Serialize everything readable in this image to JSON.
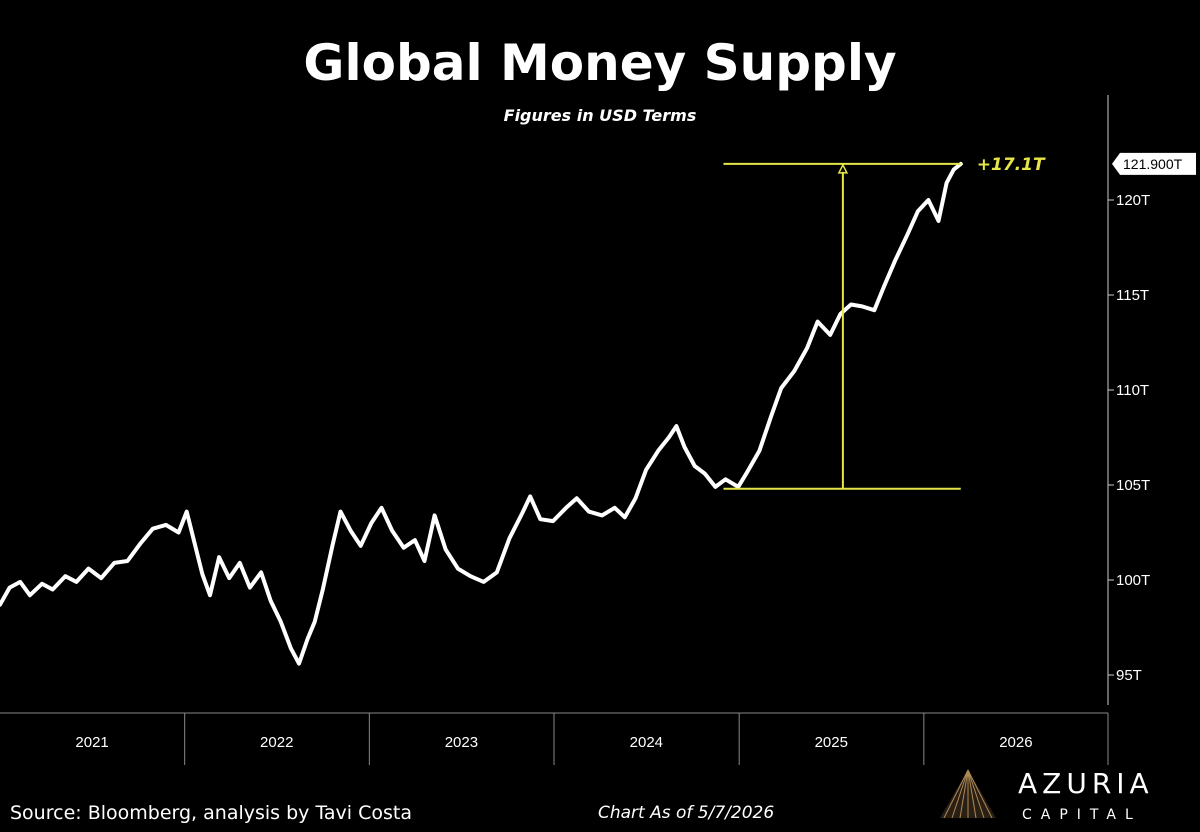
{
  "chart_data": {
    "type": "line",
    "title": "Global Money Supply",
    "subtitle": "Figures in USD Terms",
    "ylim": [
      94,
      125
    ],
    "y_ticks": [
      {
        "value": 95,
        "label": "95T"
      },
      {
        "value": 100,
        "label": "100T"
      },
      {
        "value": 105,
        "label": "105T"
      },
      {
        "value": 110,
        "label": "110T"
      },
      {
        "value": 115,
        "label": "115T"
      },
      {
        "value": 120,
        "label": "120T"
      }
    ],
    "x_labels": [
      "2021",
      "2022",
      "2023",
      "2024",
      "2025",
      "2026"
    ],
    "xlim": [
      "2021-01-01",
      "2026-12-31"
    ],
    "grid": false,
    "last_value_label": "121.900T",
    "series": [
      {
        "color": "#ffffff",
        "points": [
          [
            "2021-01-01",
            98.7
          ],
          [
            "2021-01-20",
            99.6
          ],
          [
            "2021-02-10",
            99.9
          ],
          [
            "2021-03-01",
            99.2
          ],
          [
            "2021-03-25",
            99.8
          ],
          [
            "2021-04-15",
            99.5
          ],
          [
            "2021-05-10",
            100.2
          ],
          [
            "2021-06-01",
            99.9
          ],
          [
            "2021-06-25",
            100.6
          ],
          [
            "2021-07-20",
            100.1
          ],
          [
            "2021-08-15",
            100.9
          ],
          [
            "2021-09-10",
            101.0
          ],
          [
            "2021-10-05",
            101.9
          ],
          [
            "2021-10-30",
            102.7
          ],
          [
            "2021-11-25",
            102.9
          ],
          [
            "2021-12-20",
            102.5
          ],
          [
            "2022-01-05",
            103.6
          ],
          [
            "2022-01-20",
            102.0
          ],
          [
            "2022-02-05",
            100.3
          ],
          [
            "2022-02-20",
            99.2
          ],
          [
            "2022-03-10",
            101.2
          ],
          [
            "2022-03-30",
            100.1
          ],
          [
            "2022-04-20",
            100.9
          ],
          [
            "2022-05-10",
            99.6
          ],
          [
            "2022-06-01",
            100.4
          ],
          [
            "2022-06-20",
            98.9
          ],
          [
            "2022-07-10",
            97.8
          ],
          [
            "2022-07-30",
            96.4
          ],
          [
            "2022-08-15",
            95.6
          ],
          [
            "2022-09-01",
            96.9
          ],
          [
            "2022-09-15",
            97.8
          ],
          [
            "2022-10-01",
            99.5
          ],
          [
            "2022-10-20",
            101.8
          ],
          [
            "2022-11-05",
            103.6
          ],
          [
            "2022-11-25",
            102.6
          ],
          [
            "2022-12-15",
            101.8
          ],
          [
            "2023-01-05",
            103.0
          ],
          [
            "2023-01-25",
            103.8
          ],
          [
            "2023-02-15",
            102.6
          ],
          [
            "2023-03-10",
            101.7
          ],
          [
            "2023-04-01",
            102.1
          ],
          [
            "2023-04-20",
            101.0
          ],
          [
            "2023-05-10",
            103.4
          ],
          [
            "2023-06-01",
            101.6
          ],
          [
            "2023-06-25",
            100.6
          ],
          [
            "2023-07-20",
            100.2
          ],
          [
            "2023-08-15",
            99.9
          ],
          [
            "2023-09-10",
            100.4
          ],
          [
            "2023-10-05",
            102.2
          ],
          [
            "2023-10-30",
            103.5
          ],
          [
            "2023-11-15",
            104.4
          ],
          [
            "2023-12-05",
            103.2
          ],
          [
            "2023-12-30",
            103.1
          ],
          [
            "2024-01-25",
            103.8
          ],
          [
            "2024-02-15",
            104.3
          ],
          [
            "2024-03-10",
            103.6
          ],
          [
            "2024-04-05",
            103.4
          ],
          [
            "2024-04-30",
            103.8
          ],
          [
            "2024-05-20",
            103.3
          ],
          [
            "2024-06-10",
            104.3
          ],
          [
            "2024-07-01",
            105.8
          ],
          [
            "2024-07-25",
            106.8
          ],
          [
            "2024-08-15",
            107.5
          ],
          [
            "2024-08-30",
            108.1
          ],
          [
            "2024-09-15",
            107.0
          ],
          [
            "2024-10-05",
            106.0
          ],
          [
            "2024-10-25",
            105.6
          ],
          [
            "2024-11-15",
            104.9
          ],
          [
            "2024-12-05",
            105.3
          ],
          [
            "2024-12-30",
            104.9
          ],
          [
            "2025-01-15",
            105.6
          ],
          [
            "2025-02-10",
            106.8
          ],
          [
            "2025-03-05",
            108.6
          ],
          [
            "2025-03-25",
            110.1
          ],
          [
            "2025-04-20",
            111.0
          ],
          [
            "2025-05-15",
            112.2
          ],
          [
            "2025-06-05",
            113.6
          ],
          [
            "2025-06-30",
            112.9
          ],
          [
            "2025-07-20",
            114.0
          ],
          [
            "2025-08-10",
            114.5
          ],
          [
            "2025-09-01",
            114.4
          ],
          [
            "2025-09-25",
            114.2
          ],
          [
            "2025-10-15",
            115.5
          ],
          [
            "2025-11-05",
            116.8
          ],
          [
            "2025-11-30",
            118.2
          ],
          [
            "2025-12-20",
            119.4
          ],
          [
            "2026-01-10",
            120.0
          ],
          [
            "2026-01-30",
            118.9
          ],
          [
            "2026-02-15",
            120.9
          ],
          [
            "2026-03-01",
            121.6
          ],
          [
            "2026-03-15",
            121.9
          ]
        ]
      }
    ],
    "annotation": {
      "label": "+17.1T",
      "color": "#e6e64a",
      "from_value": 104.8,
      "to_value": 121.9,
      "arrow_date": "2025-07-25",
      "line_start_date": "2024-12-01",
      "line_end_date": "2026-03-15"
    }
  },
  "footer": {
    "source": "Source: Bloomberg, analysis by Tavi Costa",
    "as_of": "Chart As of 5/7/2026"
  },
  "logo": {
    "main": "AZURIA",
    "sub": "CAPITAL"
  }
}
